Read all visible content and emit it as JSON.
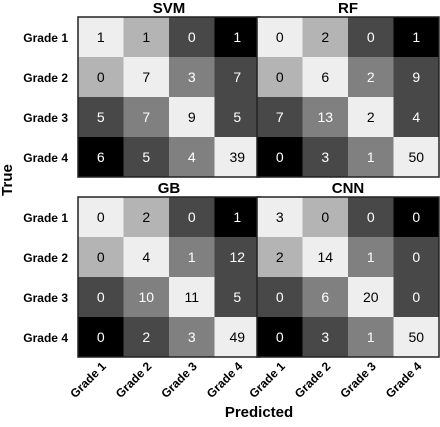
{
  "chart_data": {
    "type": "heatmap",
    "ylabel": "True",
    "xlabel": "Predicted",
    "row_labels": [
      "Grade 1",
      "Grade 2",
      "Grade 3",
      "Grade 4"
    ],
    "col_labels": [
      "Grade 1",
      "Grade 2",
      "Grade 3",
      "Grade 4"
    ],
    "panels": [
      {
        "title": "SVM",
        "values": [
          [
            1,
            1,
            0,
            1
          ],
          [
            0,
            7,
            3,
            7
          ],
          [
            5,
            7,
            9,
            5
          ],
          [
            6,
            5,
            4,
            39
          ]
        ],
        "cell_colors": [
          [
            "#eeeeee",
            "#b4b4b4",
            "#484848",
            "#000000"
          ],
          [
            "#b4b4b4",
            "#eeeeee",
            "#808080",
            "#484848"
          ],
          [
            "#484848",
            "#808080",
            "#eeeeee",
            "#484848"
          ],
          [
            "#000000",
            "#484848",
            "#808080",
            "#eeeeee"
          ]
        ]
      },
      {
        "title": "RF",
        "values": [
          [
            0,
            2,
            0,
            1
          ],
          [
            0,
            6,
            2,
            9
          ],
          [
            7,
            13,
            2,
            4
          ],
          [
            0,
            3,
            1,
            50
          ]
        ],
        "cell_colors": [
          [
            "#eeeeee",
            "#b4b4b4",
            "#484848",
            "#000000"
          ],
          [
            "#b4b4b4",
            "#eeeeee",
            "#808080",
            "#484848"
          ],
          [
            "#484848",
            "#808080",
            "#eeeeee",
            "#484848"
          ],
          [
            "#000000",
            "#484848",
            "#808080",
            "#eeeeee"
          ]
        ]
      },
      {
        "title": "GB",
        "values": [
          [
            0,
            2,
            0,
            1
          ],
          [
            0,
            4,
            1,
            12
          ],
          [
            0,
            10,
            11,
            5
          ],
          [
            0,
            2,
            3,
            49
          ]
        ],
        "cell_colors": [
          [
            "#eeeeee",
            "#b4b4b4",
            "#484848",
            "#000000"
          ],
          [
            "#b4b4b4",
            "#eeeeee",
            "#808080",
            "#484848"
          ],
          [
            "#484848",
            "#808080",
            "#eeeeee",
            "#484848"
          ],
          [
            "#000000",
            "#484848",
            "#808080",
            "#eeeeee"
          ]
        ]
      },
      {
        "title": "CNN",
        "values": [
          [
            3,
            0,
            0,
            0
          ],
          [
            2,
            14,
            1,
            0
          ],
          [
            0,
            6,
            20,
            0
          ],
          [
            0,
            3,
            1,
            50
          ]
        ],
        "cell_colors": [
          [
            "#eeeeee",
            "#b4b4b4",
            "#484848",
            "#000000"
          ],
          [
            "#b4b4b4",
            "#eeeeee",
            "#808080",
            "#484848"
          ],
          [
            "#484848",
            "#808080",
            "#eeeeee",
            "#484848"
          ],
          [
            "#000000",
            "#484848",
            "#808080",
            "#eeeeee"
          ]
        ]
      }
    ]
  },
  "colors": {
    "text_on_light": "#000000",
    "text_on_dark": "#ffffff",
    "panel_border": "#222222"
  }
}
